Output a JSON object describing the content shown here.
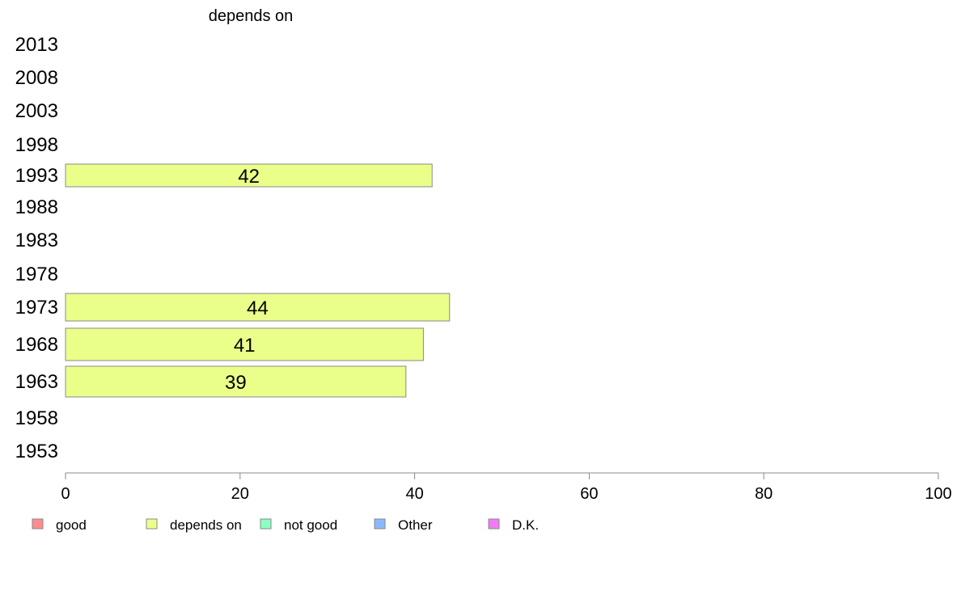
{
  "chart_data": {
    "type": "bar",
    "orientation": "horizontal",
    "title": "depends on",
    "categories": [
      "2013",
      "2008",
      "2003",
      "1998",
      "1993",
      "1988",
      "1983",
      "1978",
      "1973",
      "1968",
      "1963",
      "1958",
      "1953"
    ],
    "series": [
      {
        "name": "depends on",
        "color": "#eaff8a",
        "values": [
          null,
          null,
          null,
          null,
          42,
          null,
          null,
          null,
          44,
          41,
          39,
          null,
          null
        ]
      }
    ],
    "xlim": [
      0,
      100
    ],
    "xticks": [
      0,
      20,
      40,
      60,
      80,
      100
    ],
    "grid": false,
    "legend": {
      "position": "bottom",
      "items": [
        {
          "label": "good",
          "color": "#ff8c8c"
        },
        {
          "label": "depends on",
          "color": "#eaff8a"
        },
        {
          "label": "not good",
          "color": "#8cffc2"
        },
        {
          "label": "Other",
          "color": "#8cb8ff"
        },
        {
          "label": "D.K.",
          "color": "#f07cf5"
        }
      ]
    }
  }
}
